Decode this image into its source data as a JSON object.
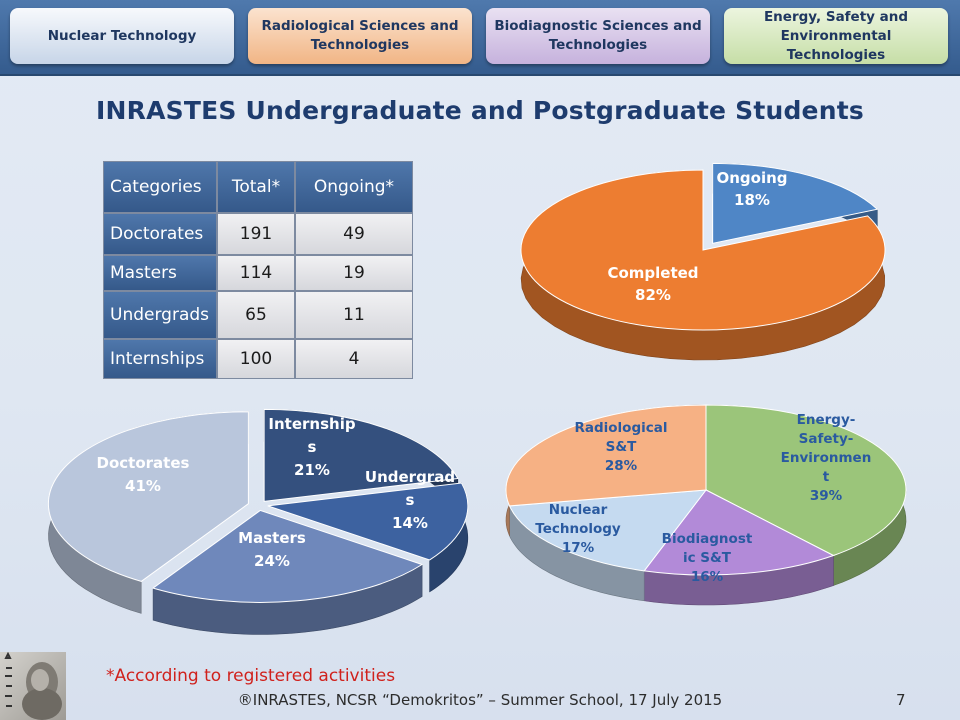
{
  "header": {
    "tabs": [
      {
        "label": "Nuclear Technology"
      },
      {
        "label": "Radiological Sciences and Technologies"
      },
      {
        "label": "Biodiagnostic Sciences and Technologies"
      },
      {
        "label": "Energy, Safety and Environmental Technologies"
      }
    ]
  },
  "title": "INRASTES Undergraduate and Postgraduate Students",
  "table": {
    "headers": [
      "Categories",
      "Total*",
      "Ongoing*"
    ],
    "rows": [
      {
        "category": "Doctorates",
        "total": "191",
        "ongoing": "49"
      },
      {
        "category": "Masters",
        "total": "114",
        "ongoing": "19"
      },
      {
        "category": "Undergrads",
        "total": "65",
        "ongoing": "11"
      },
      {
        "category": "Internships",
        "total": "100",
        "ongoing": "4"
      }
    ]
  },
  "chart_data": [
    {
      "type": "pie",
      "title": "",
      "slices": [
        {
          "label": "Ongoing",
          "value": 18,
          "display": "18%",
          "color": "#4f86c6"
        },
        {
          "label": "Completed",
          "value": 82,
          "display": "82%",
          "color": "#ed7d31"
        }
      ]
    },
    {
      "type": "pie",
      "title": "",
      "slices": [
        {
          "label": "Internships",
          "value": 21,
          "display": "21%",
          "color": "#34507e"
        },
        {
          "label": "Undergrads",
          "value": 14,
          "display": "14%",
          "color": "#3d62a0"
        },
        {
          "label": "Masters",
          "value": 24,
          "display": "24%",
          "color": "#6f88bb"
        },
        {
          "label": "Doctorates",
          "value": 41,
          "display": "41%",
          "color": "#b9c6dc"
        }
      ]
    },
    {
      "type": "pie",
      "title": "",
      "slices": [
        {
          "label": "Energy-Safety-Environment",
          "value": 39,
          "display": "39%",
          "color": "#9bc57a"
        },
        {
          "label": "Biodiagnostic S&T",
          "value": 16,
          "display": "16%",
          "color": "#b28ad8"
        },
        {
          "label": "Nuclear Technology",
          "value": 17,
          "display": "17%",
          "color": "#c5daf0"
        },
        {
          "label": "Radiological S&T",
          "value": 28,
          "display": "28%",
          "color": "#f6b184"
        }
      ]
    }
  ],
  "footnote": "*According to registered  activities",
  "footer": "®INRASTES, NCSR “Demokritos” – Summer School, 17 July 2015",
  "page_number": "7"
}
